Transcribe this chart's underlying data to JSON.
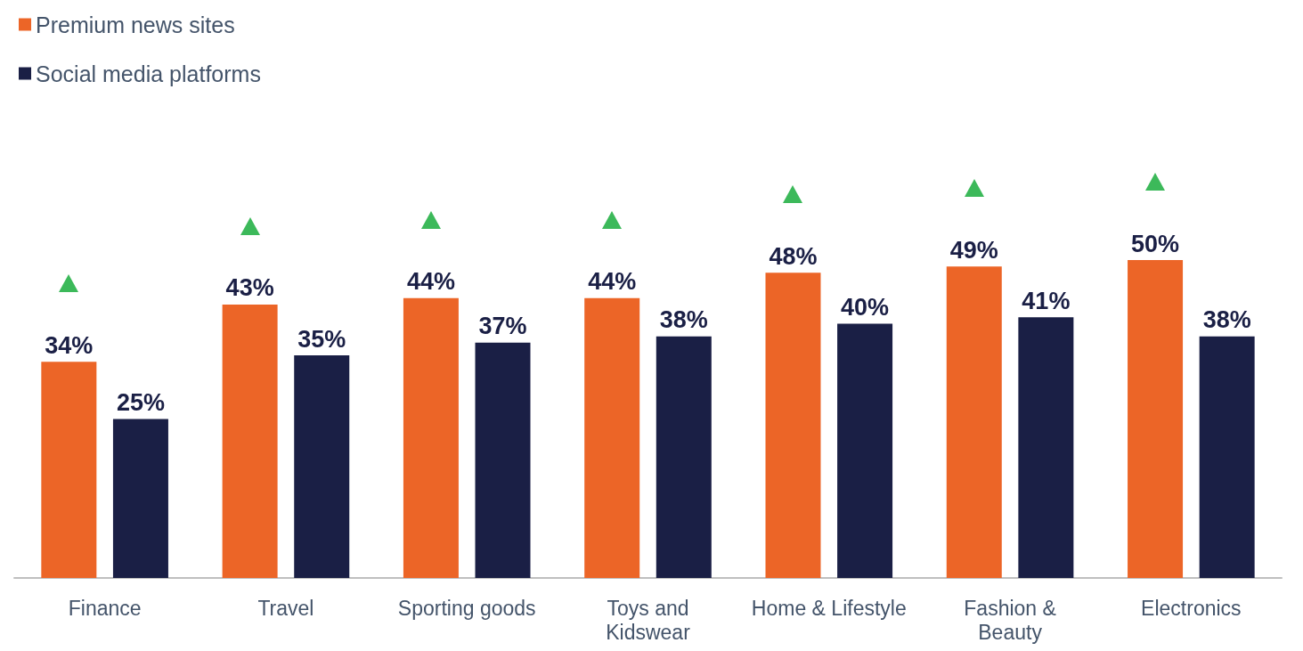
{
  "chart_data": {
    "type": "bar",
    "categories": [
      "Finance",
      "Travel",
      "Sporting goods",
      "Toys and\nKidswear",
      "Home & Lifestyle",
      "Fashion &\nBeauty",
      "Electronics"
    ],
    "series": [
      {
        "name": "Premium news sites",
        "color": "#ec6527",
        "values": [
          34,
          43,
          44,
          44,
          48,
          49,
          50
        ],
        "value_labels": [
          "34%",
          "43%",
          "44%",
          "44%",
          "48%",
          "49%",
          "50%"
        ]
      },
      {
        "name": "Social media platforms",
        "color": "#1a1f45",
        "values": [
          25,
          35,
          37,
          38,
          40,
          41,
          38
        ],
        "value_labels": [
          "25%",
          "35%",
          "37%",
          "38%",
          "40%",
          "41%",
          "38%"
        ]
      }
    ],
    "legend": "top left",
    "tick_labels": "x"
  }
}
